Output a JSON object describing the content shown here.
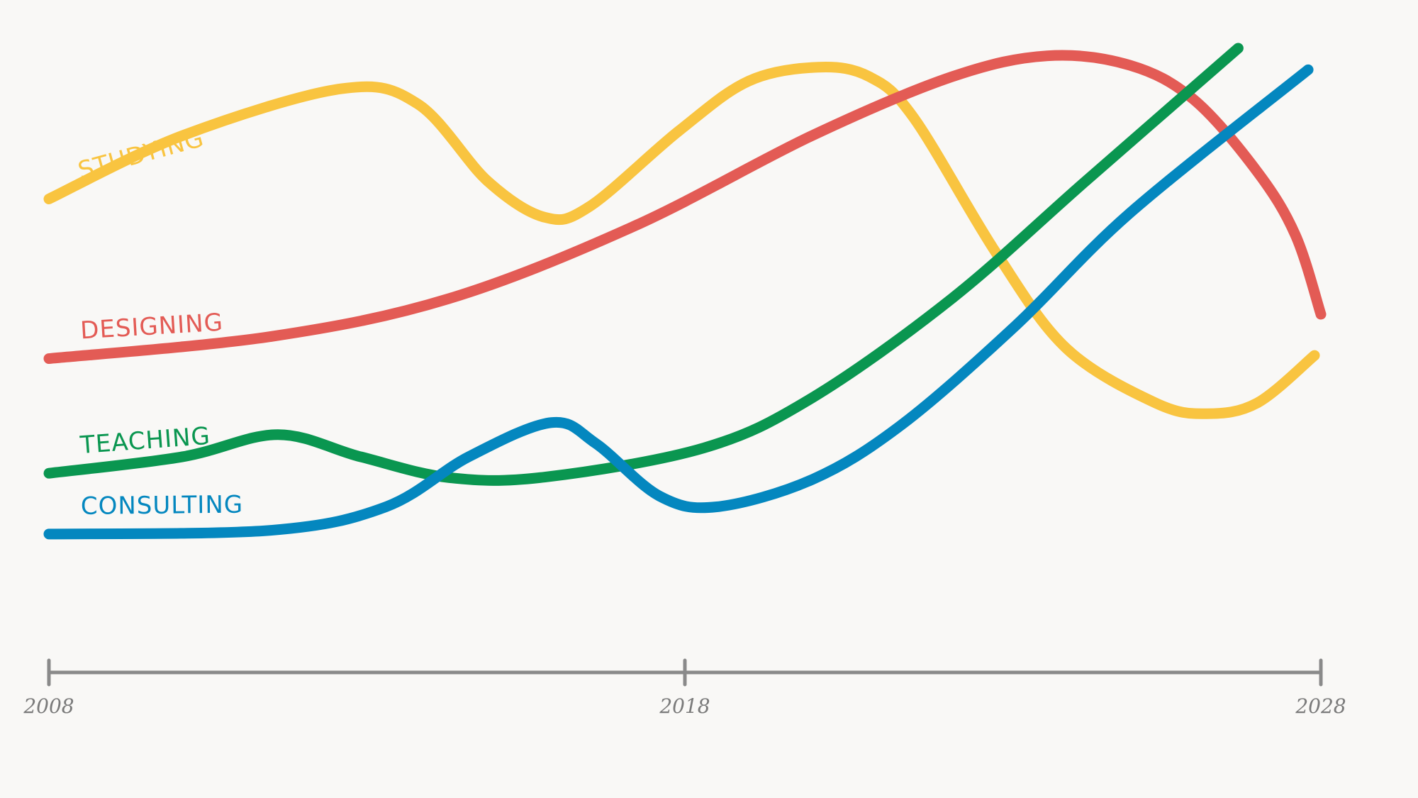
{
  "chart_data": {
    "type": "line",
    "xlim": [
      2008,
      2028
    ],
    "xticks": [
      2008,
      2018,
      2028
    ],
    "ylim": [
      0,
      100
    ],
    "series": [
      {
        "name": "STUDYING",
        "color": "#f9c440",
        "x": [
          2008.0,
          2010.1,
          2012.6,
          2013.8,
          2014.9,
          2015.8,
          2016.5,
          2017.9,
          2019.0,
          2020.1,
          2020.9,
          2021.6,
          2022.9,
          2024.0,
          2025.4,
          2026.2,
          2027.0,
          2027.9
        ],
        "values": [
          74.3,
          84.3,
          91.7,
          89.3,
          77.1,
          71.4,
          73.1,
          85,
          92.9,
          95.1,
          93.6,
          87.1,
          65.7,
          50.7,
          42.1,
          40.4,
          42.1,
          49.6
        ]
      },
      {
        "name": "DESIGNING",
        "color": "#e35b55",
        "x": [
          2008.0,
          2011.5,
          2014.3,
          2017.2,
          2020.0,
          2022.2,
          2023.7,
          2025.0,
          2026.0,
          2027.0,
          2027.6,
          2028.0
        ],
        "values": [
          49.1,
          52.6,
          58.6,
          70,
          84.3,
          93.6,
          96.9,
          95.4,
          90,
          78.6,
          68.6,
          56.1
        ]
      },
      {
        "name": "TEACHING",
        "color": "#0a9650",
        "x": [
          2008.0,
          2010.1,
          2011.6,
          2012.9,
          2014.3,
          2015.8,
          2018.3,
          2020.0,
          2022.2,
          2024.3,
          2026.7
        ],
        "values": [
          31,
          33.6,
          37.1,
          33.6,
          30.3,
          30.4,
          35,
          42.9,
          58.6,
          77.1,
          98.1
        ]
      },
      {
        "name": "CONSULTING",
        "color": "#0487bf",
        "x": [
          2008.0,
          2011.5,
          2013.3,
          2014.6,
          2015.9,
          2016.6,
          2017.6,
          2018.5,
          2020.0,
          2021.4,
          2023.2,
          2025.0,
          2027.8
        ],
        "values": [
          21.4,
          22,
          25.7,
          33.6,
          39,
          35.7,
          27.4,
          25.7,
          30,
          38.6,
          54.3,
          72.1,
          94.7
        ]
      }
    ]
  }
}
